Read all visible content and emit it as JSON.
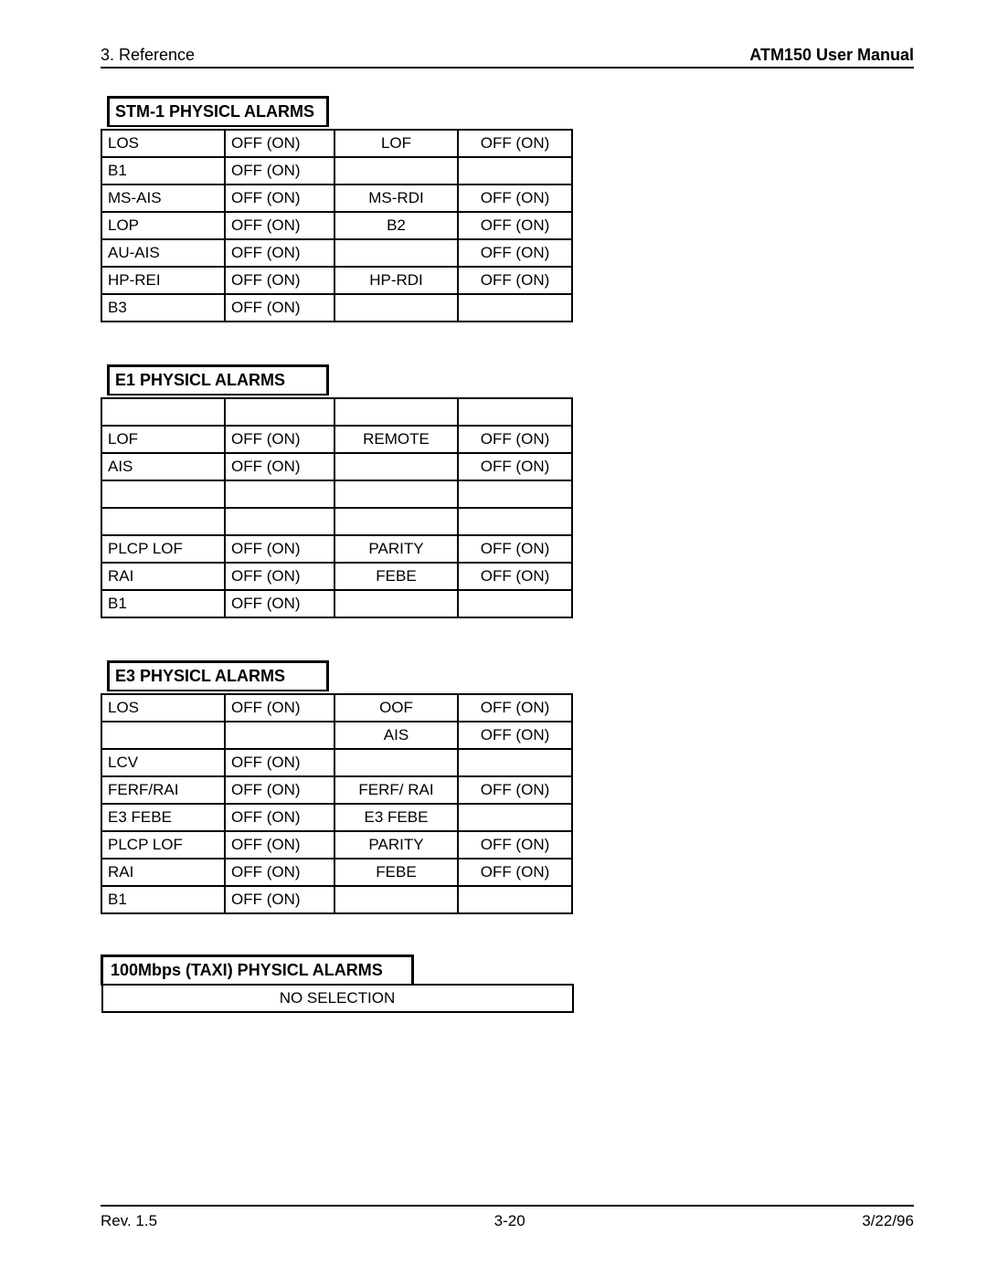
{
  "header": {
    "left": "3. Reference",
    "right": "ATM150 User Manual"
  },
  "footer": {
    "rev": "Rev. 1.5",
    "page": "3-20",
    "date": "3/22/96"
  },
  "off_on": "OFF (ON)",
  "tables": {
    "stm1": {
      "title": "STM-1 PHYSICL ALARMS",
      "rows": [
        [
          "LOS",
          "OFF (ON)",
          "LOF",
          "OFF (ON)"
        ],
        [
          "B1",
          "OFF (ON)",
          "",
          ""
        ],
        [
          "MS-AIS",
          "OFF (ON)",
          "MS-RDI",
          "OFF (ON)"
        ],
        [
          "LOP",
          "OFF (ON)",
          "B2",
          "OFF (ON)"
        ],
        [
          "AU-AIS",
          "OFF (ON)",
          "",
          "OFF (ON)"
        ],
        [
          "HP-REI",
          "OFF (ON)",
          "HP-RDI",
          "OFF (ON)"
        ],
        [
          "B3",
          "OFF (ON)",
          "",
          ""
        ]
      ]
    },
    "e1": {
      "title": "E1 PHYSICL ALARMS",
      "rows": [
        [
          "",
          "",
          "",
          ""
        ],
        [
          "LOF",
          "OFF (ON)",
          "REMOTE",
          "OFF (ON)"
        ],
        [
          "AIS",
          "OFF (ON)",
          "",
          "OFF (ON)"
        ],
        [
          "",
          "",
          "",
          ""
        ],
        [
          "",
          "",
          "",
          ""
        ],
        [
          "PLCP LOF",
          "OFF (ON)",
          "PARITY",
          "OFF (ON)"
        ],
        [
          "RAI",
          "OFF (ON)",
          "FEBE",
          "OFF (ON)"
        ],
        [
          "B1",
          "OFF (ON)",
          "",
          ""
        ]
      ]
    },
    "e3": {
      "title": "E3 PHYSICL ALARMS",
      "rows": [
        [
          "LOS",
          "OFF (ON)",
          "OOF",
          "OFF (ON)"
        ],
        [
          "",
          "",
          "AIS",
          "OFF (ON)"
        ],
        [
          "LCV",
          "OFF (ON)",
          "",
          ""
        ],
        [
          "FERF/RAI",
          "OFF (ON)",
          "FERF/ RAI",
          "OFF (ON)"
        ],
        [
          "E3 FEBE",
          "OFF (ON)",
          "E3 FEBE",
          ""
        ],
        [
          "PLCP LOF",
          "OFF (ON)",
          "PARITY",
          "OFF (ON)"
        ],
        [
          "RAI",
          "OFF (ON)",
          "FEBE",
          "OFF (ON)"
        ],
        [
          "B1",
          "OFF (ON)",
          "",
          ""
        ]
      ]
    },
    "taxi": {
      "title": "100Mbps (TAXI) PHYSICL ALARMS",
      "row": "NO SELECTION"
    }
  }
}
